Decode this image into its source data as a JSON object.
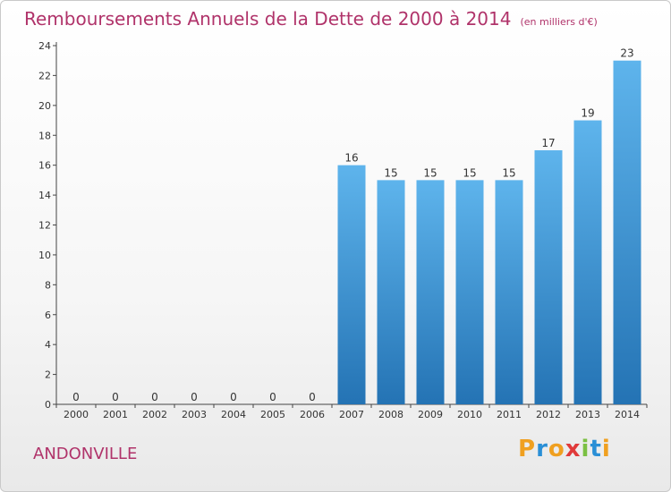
{
  "title": "Remboursements Annuels de la Dette de 2000 à 2014",
  "unit": "(en milliers d'€)",
  "commune": "ANDONVILLE",
  "logo": {
    "text": "Proxiti",
    "colors": [
      "#f0a020",
      "#2a8fd6",
      "#f0a020",
      "#e03a3a",
      "#7bc043",
      "#2a8fd6",
      "#f0a020"
    ]
  },
  "colors": {
    "title": "#b0336a",
    "bar_top": "#5eb4ec",
    "bar_bottom": "#2473b4",
    "axis": "#444444",
    "grid": "#d8d8d8"
  },
  "chart_data": {
    "type": "bar",
    "title": "Remboursements Annuels de la Dette de 2000 à 2014",
    "subtitle": "(en milliers d'€)",
    "xlabel": "",
    "ylabel": "",
    "categories": [
      "2000",
      "2001",
      "2002",
      "2003",
      "2004",
      "2005",
      "2006",
      "2007",
      "2008",
      "2009",
      "2010",
      "2011",
      "2012",
      "2013",
      "2014"
    ],
    "values": [
      0,
      0,
      0,
      0,
      0,
      0,
      0,
      16,
      15,
      15,
      15,
      15,
      17,
      19,
      23
    ],
    "data_labels": [
      "0",
      "0",
      "0",
      "0",
      "0",
      "0",
      "0",
      "16",
      "15",
      "15",
      "15",
      "15",
      "17",
      "19",
      "23"
    ],
    "yticks": [
      "0",
      "2",
      "4",
      "6",
      "8",
      "10",
      "12",
      "14",
      "16",
      "18",
      "20",
      "22",
      "24"
    ],
    "ylim": [
      0,
      24
    ],
    "grid": false,
    "legend": "none"
  }
}
